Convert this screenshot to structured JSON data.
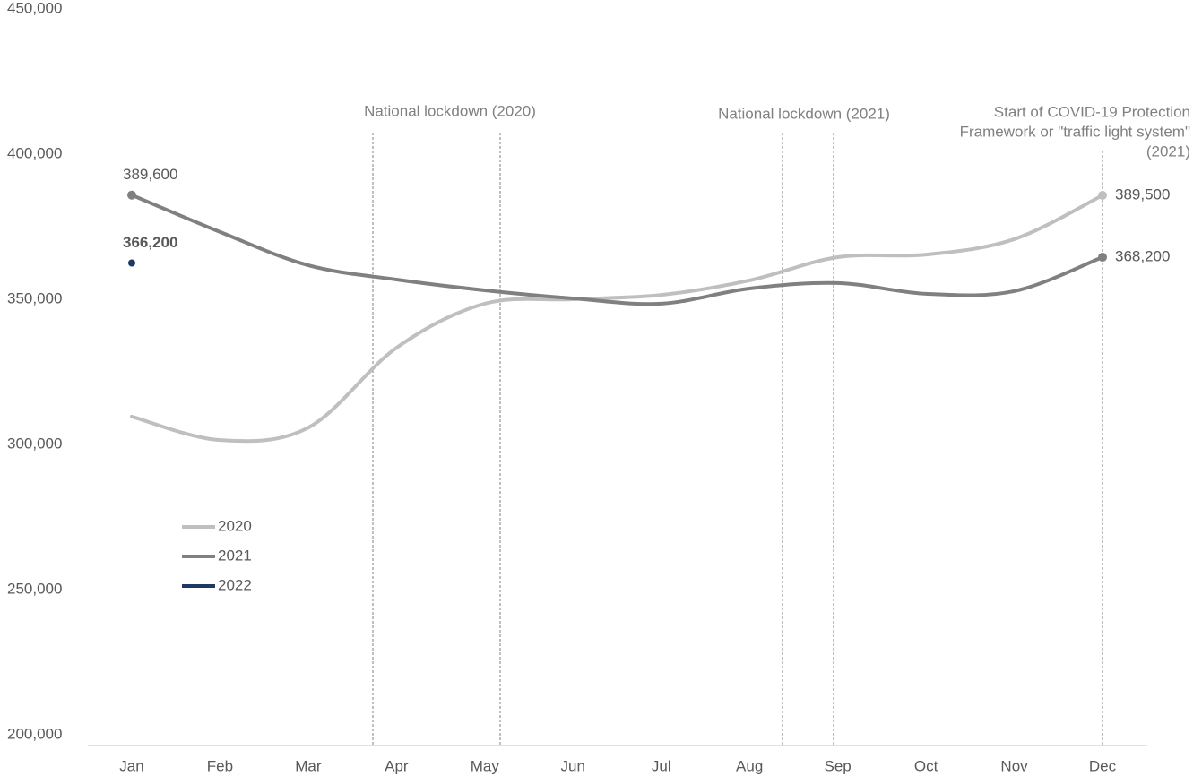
{
  "chart_data": {
    "type": "line",
    "categories": [
      "Jan",
      "Feb",
      "Mar",
      "Apr",
      "May",
      "Jun",
      "Jul",
      "Aug",
      "Sep",
      "Oct",
      "Nov",
      "Dec"
    ],
    "series": [
      {
        "name": "2020",
        "color": "#bfbfbf",
        "values": [
          313300,
          305200,
          309500,
          337000,
          352200,
          353700,
          355200,
          360200,
          368200,
          369100,
          374400,
          389500
        ],
        "value_labels": [
          null,
          null,
          null,
          null,
          null,
          null,
          null,
          null,
          null,
          null,
          null,
          "389,500"
        ]
      },
      {
        "name": "2021",
        "color": "#808080",
        "values": [
          389600,
          376900,
          365400,
          360500,
          356800,
          354000,
          352200,
          357400,
          359300,
          355600,
          356500,
          368200
        ],
        "value_labels": [
          "389,600",
          null,
          null,
          null,
          null,
          null,
          null,
          null,
          null,
          null,
          null,
          "368,200"
        ]
      },
      {
        "name": "2022",
        "color": "#1f3864",
        "values": [
          366200,
          null,
          null,
          null,
          null,
          null,
          null,
          null,
          null,
          null,
          null,
          null
        ],
        "value_labels": [
          "366,200",
          null,
          null,
          null,
          null,
          null,
          null,
          null,
          null,
          null,
          null,
          null
        ]
      }
    ],
    "ylim": [
      200000,
      450000
    ],
    "yticks": [
      {
        "value": 200000,
        "label": "200,000"
      },
      {
        "value": 250000,
        "label": "250,000"
      },
      {
        "value": 300000,
        "label": "300,000"
      },
      {
        "value": 350000,
        "label": "350,000"
      },
      {
        "value": 400000,
        "label": "400,000"
      },
      {
        "value": 450000,
        "label": "450,000"
      }
    ],
    "annotations": [
      {
        "text": [
          "National lockdown (2020)"
        ]
      },
      {
        "text": [
          "National lockdown (2021)"
        ]
      },
      {
        "text": [
          "Start of COVID-19 Protection",
          "Framework or \"traffic light system\"",
          "(2021)"
        ]
      }
    ]
  }
}
